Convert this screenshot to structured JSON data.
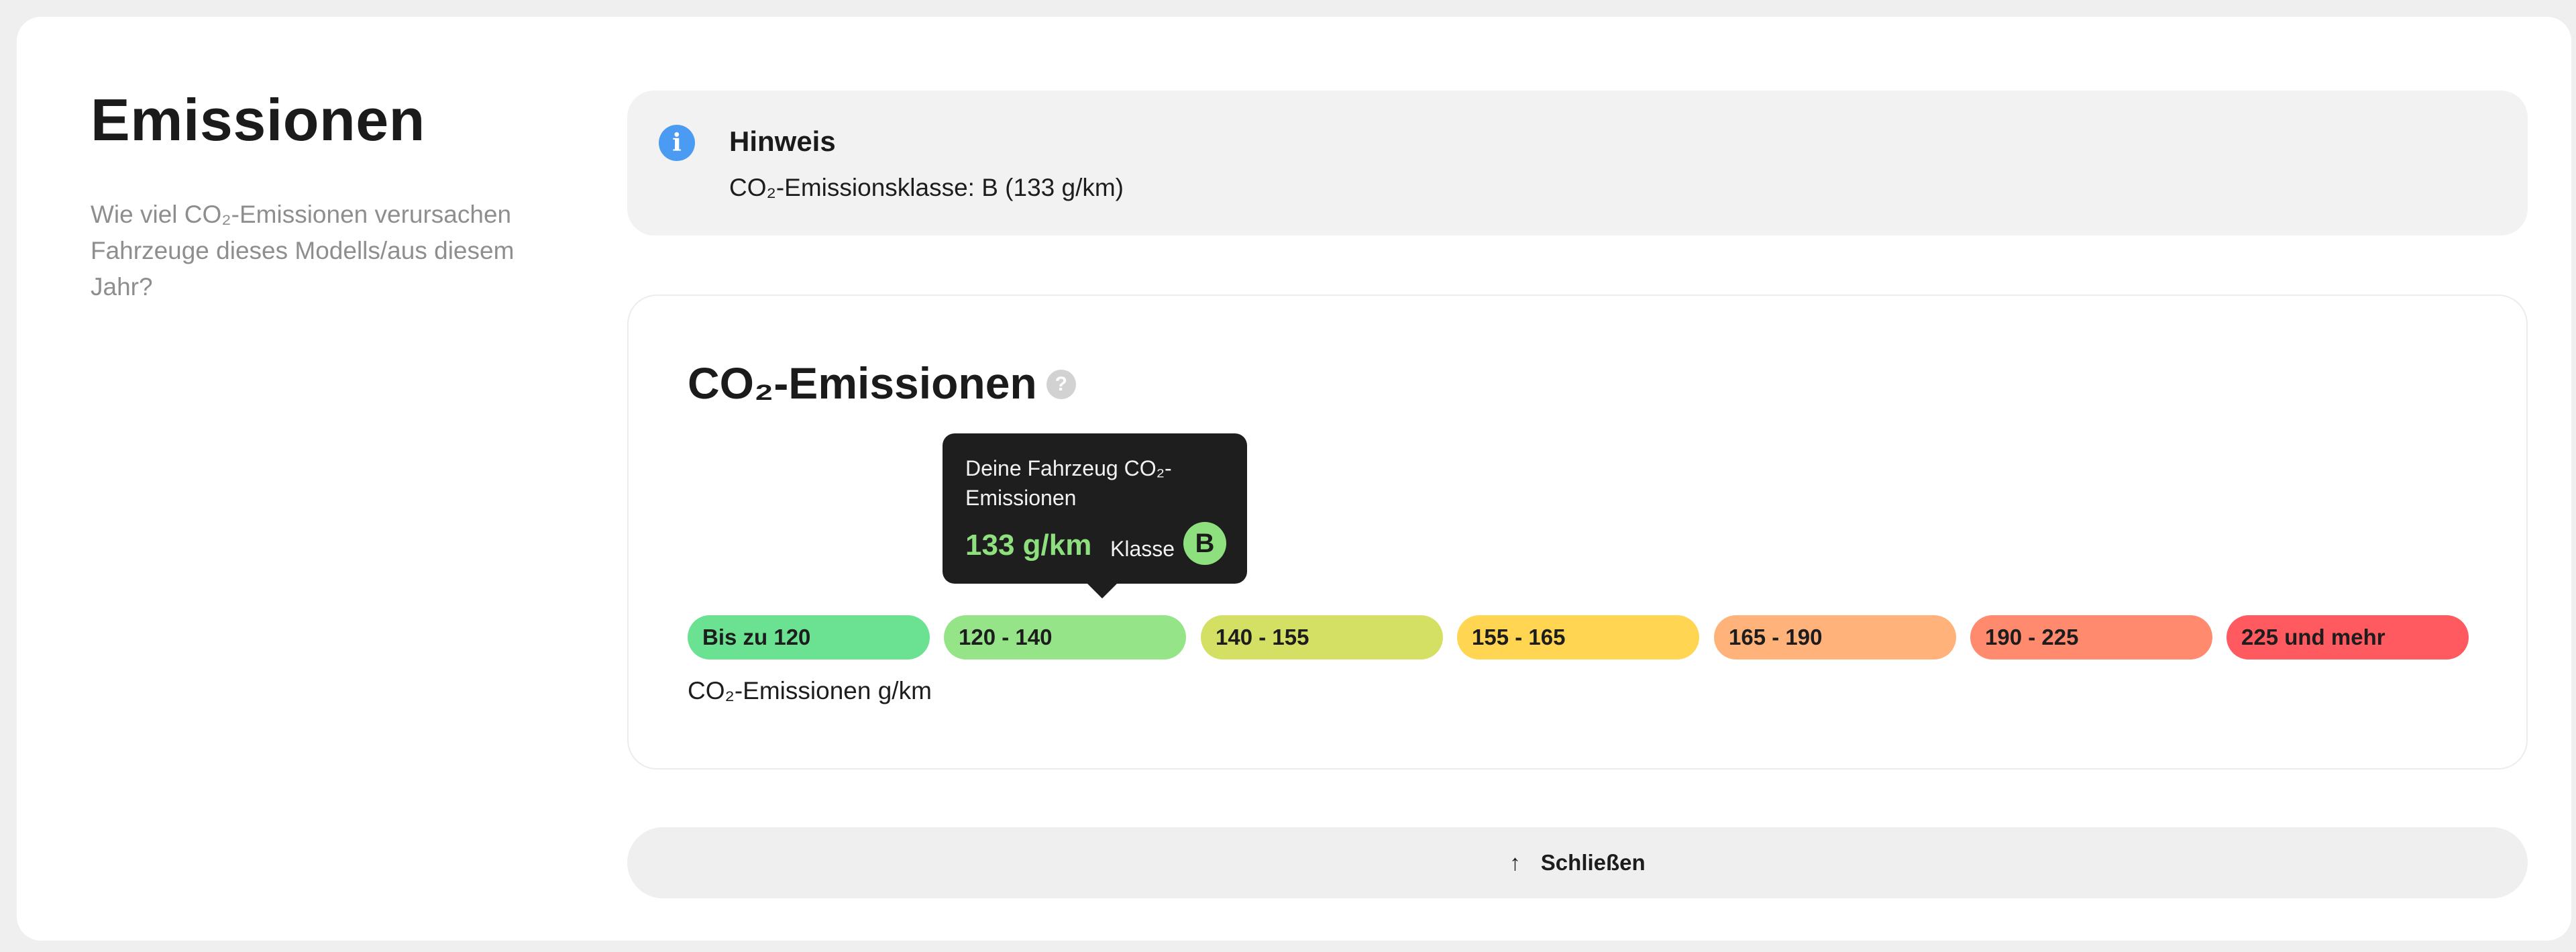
{
  "section": {
    "title": "Emissionen",
    "description": "Wie viel CO₂-Emissionen verursachen Fahrzeuge dieses Modells/aus diesem Jahr?"
  },
  "notice": {
    "icon": "info-icon",
    "title": "Hinweis",
    "text": "CO₂-Emissionsklasse: B (133 g/km)"
  },
  "emissions_card": {
    "title": "CO₂-Emissionen",
    "help_icon": "question-icon",
    "tooltip": {
      "label": "Deine Fahrzeug CO₂-Emissionen",
      "value": "133 g/km",
      "class_label": "Klasse",
      "class_value": "B"
    },
    "bands": [
      {
        "label": "Bis zu 120",
        "color": "#6be192"
      },
      {
        "label": "120 - 140",
        "color": "#95e488"
      },
      {
        "label": "140 - 155",
        "color": "#d4e064"
      },
      {
        "label": "155 - 165",
        "color": "#ffd551"
      },
      {
        "label": "165 - 190",
        "color": "#ffb37a"
      },
      {
        "label": "190 - 225",
        "color": "#ff8a6e"
      },
      {
        "label": "225 und mehr",
        "color": "#ff5a5f"
      }
    ],
    "axis_label": "CO₂-Emissionen g/km"
  },
  "close_button": {
    "icon": "arrow-up-icon",
    "label": "Schließen"
  }
}
